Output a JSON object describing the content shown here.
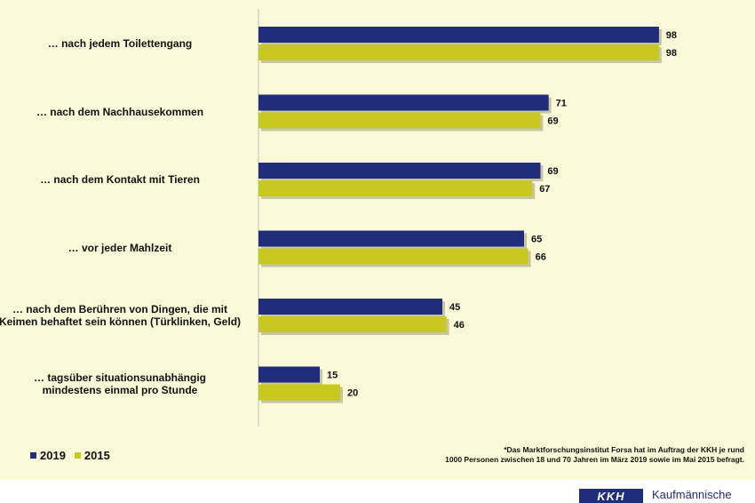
{
  "chart_data": {
    "type": "bar",
    "orientation": "horizontal",
    "categories": [
      [
        "… nach jedem Toilettengang"
      ],
      [
        "… nach dem Nachhausekommen"
      ],
      [
        "… nach dem Kontakt mit Tieren"
      ],
      [
        "… vor jeder Mahlzeit"
      ],
      [
        "… nach dem Berühren von Dingen, die mit",
        "Keimen behaftet sein können (Türklinken, Geld)"
      ],
      [
        "… tagsüber situationsunabhängig",
        "mindestens einmal pro Stunde"
      ]
    ],
    "series": [
      {
        "name": "2019",
        "color": "#1f2d7a",
        "values": [
          98,
          71,
          69,
          65,
          45,
          15
        ]
      },
      {
        "name": "2015",
        "color": "#c8c81e",
        "values": [
          98,
          69,
          67,
          66,
          46,
          20
        ]
      }
    ],
    "xlim": [
      0,
      100
    ],
    "legend_position": "bottom-left"
  },
  "footnote": [
    "*Das Marktforschungsinstitut Forsa hat im Auftrag der KKH je rund",
    "1000 Personen zwischen 18 und 70 Jahren im März 2019 sowie im Mai 2015 befragt."
  ],
  "logo": {
    "mark": "KKH",
    "name": "Kaufmännische"
  }
}
